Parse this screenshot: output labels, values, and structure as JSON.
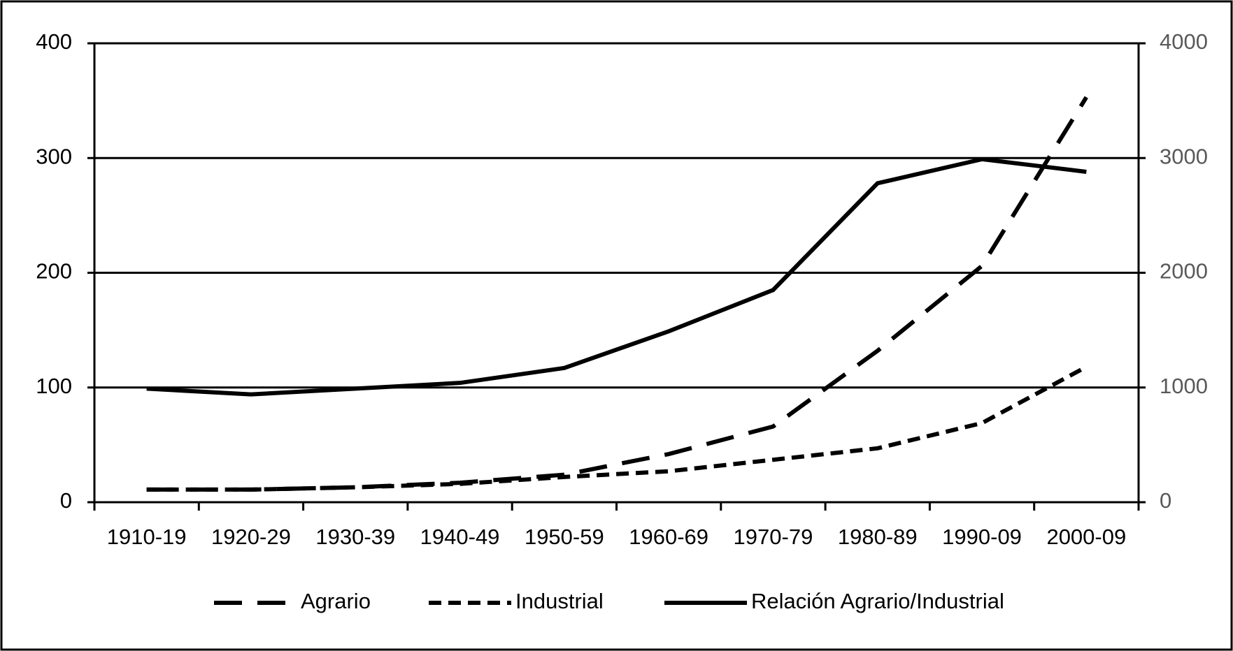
{
  "chart_data": {
    "type": "line",
    "categories": [
      "1910-19",
      "1920-29",
      "1930-39",
      "1940-49",
      "1950-59",
      "1960-69",
      "1970-79",
      "1980-89",
      "1990-09",
      "2000-09"
    ],
    "series": [
      {
        "name": "Agrario",
        "color": "#000000",
        "dash": "long",
        "axis": "y2",
        "values": [
          110,
          110,
          130,
          170,
          240,
          420,
          660,
          1320,
          2060,
          3530
        ]
      },
      {
        "name": "Industrial",
        "color": "#000000",
        "dash": "short",
        "axis": "y2",
        "values": [
          110,
          110,
          130,
          160,
          220,
          270,
          370,
          470,
          690,
          1180
        ]
      },
      {
        "name": "Relación Agrario/Industrial",
        "color": "#000000",
        "dash": "solid",
        "values": [
          99,
          94,
          99,
          104,
          117,
          149,
          185,
          278,
          299,
          288
        ]
      }
    ],
    "ylim": [
      0,
      400
    ],
    "yticks": [
      0,
      100,
      200,
      300,
      400
    ],
    "y2lim": [
      0,
      4000
    ],
    "y2ticks": [
      0,
      1000,
      2000,
      3000,
      4000
    ],
    "grid": true,
    "legend": "bottom"
  }
}
